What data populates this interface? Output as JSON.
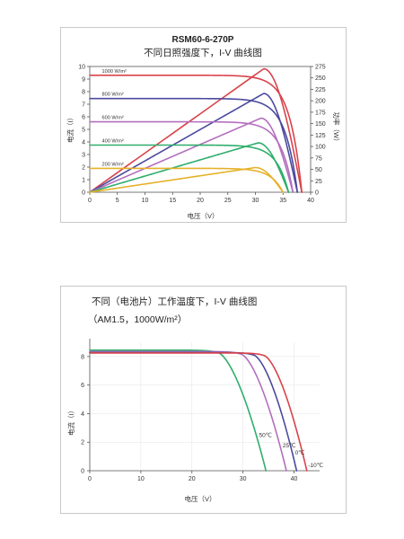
{
  "chart_data": [
    {
      "type": "line",
      "title": "RSM60-6-270P",
      "subtitle": "不同日照强度下，I-V 曲线图",
      "xlabel": "电压（V）",
      "ylabel": "电流（I）",
      "y2label": "功率（W）",
      "xlim": [
        0,
        40
      ],
      "ylim": [
        0,
        10
      ],
      "y2lim": [
        0,
        275
      ],
      "x_ticks": [
        0,
        5,
        10,
        15,
        20,
        25,
        30,
        35,
        40
      ],
      "y_ticks": [
        0,
        1,
        2,
        3,
        4,
        5,
        6,
        7,
        8,
        9,
        10
      ],
      "y2_ticks": [
        0,
        25,
        50,
        75,
        100,
        125,
        150,
        175,
        200,
        225,
        250,
        275
      ],
      "grid": false,
      "series": [
        {
          "name": "1000 W/m²",
          "color": "#d9434a",
          "isc": 9.3,
          "voc": 38.4,
          "pmax": 270,
          "vmp": 31.5
        },
        {
          "name": "800 W/m²",
          "color": "#4c4a9e",
          "isc": 7.45,
          "voc": 37.6,
          "pmax": 216,
          "vmp": 31.5
        },
        {
          "name": "600 W/m²",
          "color": "#b36fbf",
          "isc": 5.6,
          "voc": 36.8,
          "pmax": 162,
          "vmp": 31.0
        },
        {
          "name": "400 W/m²",
          "color": "#2fae6c",
          "isc": 3.75,
          "voc": 36.0,
          "pmax": 108,
          "vmp": 30.5
        },
        {
          "name": "200 W/m²",
          "color": "#e6b12a",
          "isc": 1.9,
          "voc": 35.0,
          "pmax": 54,
          "vmp": 30.0
        }
      ]
    },
    {
      "type": "line",
      "title": "不同（电池片）工作温度下，I-V 曲线图",
      "subtitle": "（AM1.5，1000W/m²）",
      "xlabel": "电压（V）",
      "ylabel": "电流（I）",
      "xlim": [
        0,
        45
      ],
      "ylim": [
        0,
        9
      ],
      "x_ticks": [
        0,
        10,
        20,
        30,
        40
      ],
      "y_ticks": [
        0,
        2,
        4,
        6,
        8
      ],
      "grid": false,
      "series": [
        {
          "name": "50℃",
          "color": "#2fae6c",
          "isc": 8.45,
          "voc": 34.5,
          "knee": 25.0
        },
        {
          "name": "25℃",
          "color": "#b36fbf",
          "isc": 8.35,
          "voc": 38.5,
          "knee": 29.5
        },
        {
          "name": "0℃",
          "color": "#4c4a9e",
          "isc": 8.28,
          "voc": 40.5,
          "knee": 32.0
        },
        {
          "name": "-10℃",
          "color": "#d9434a",
          "isc": 8.25,
          "voc": 42.5,
          "knee": 34.0
        }
      ]
    }
  ]
}
